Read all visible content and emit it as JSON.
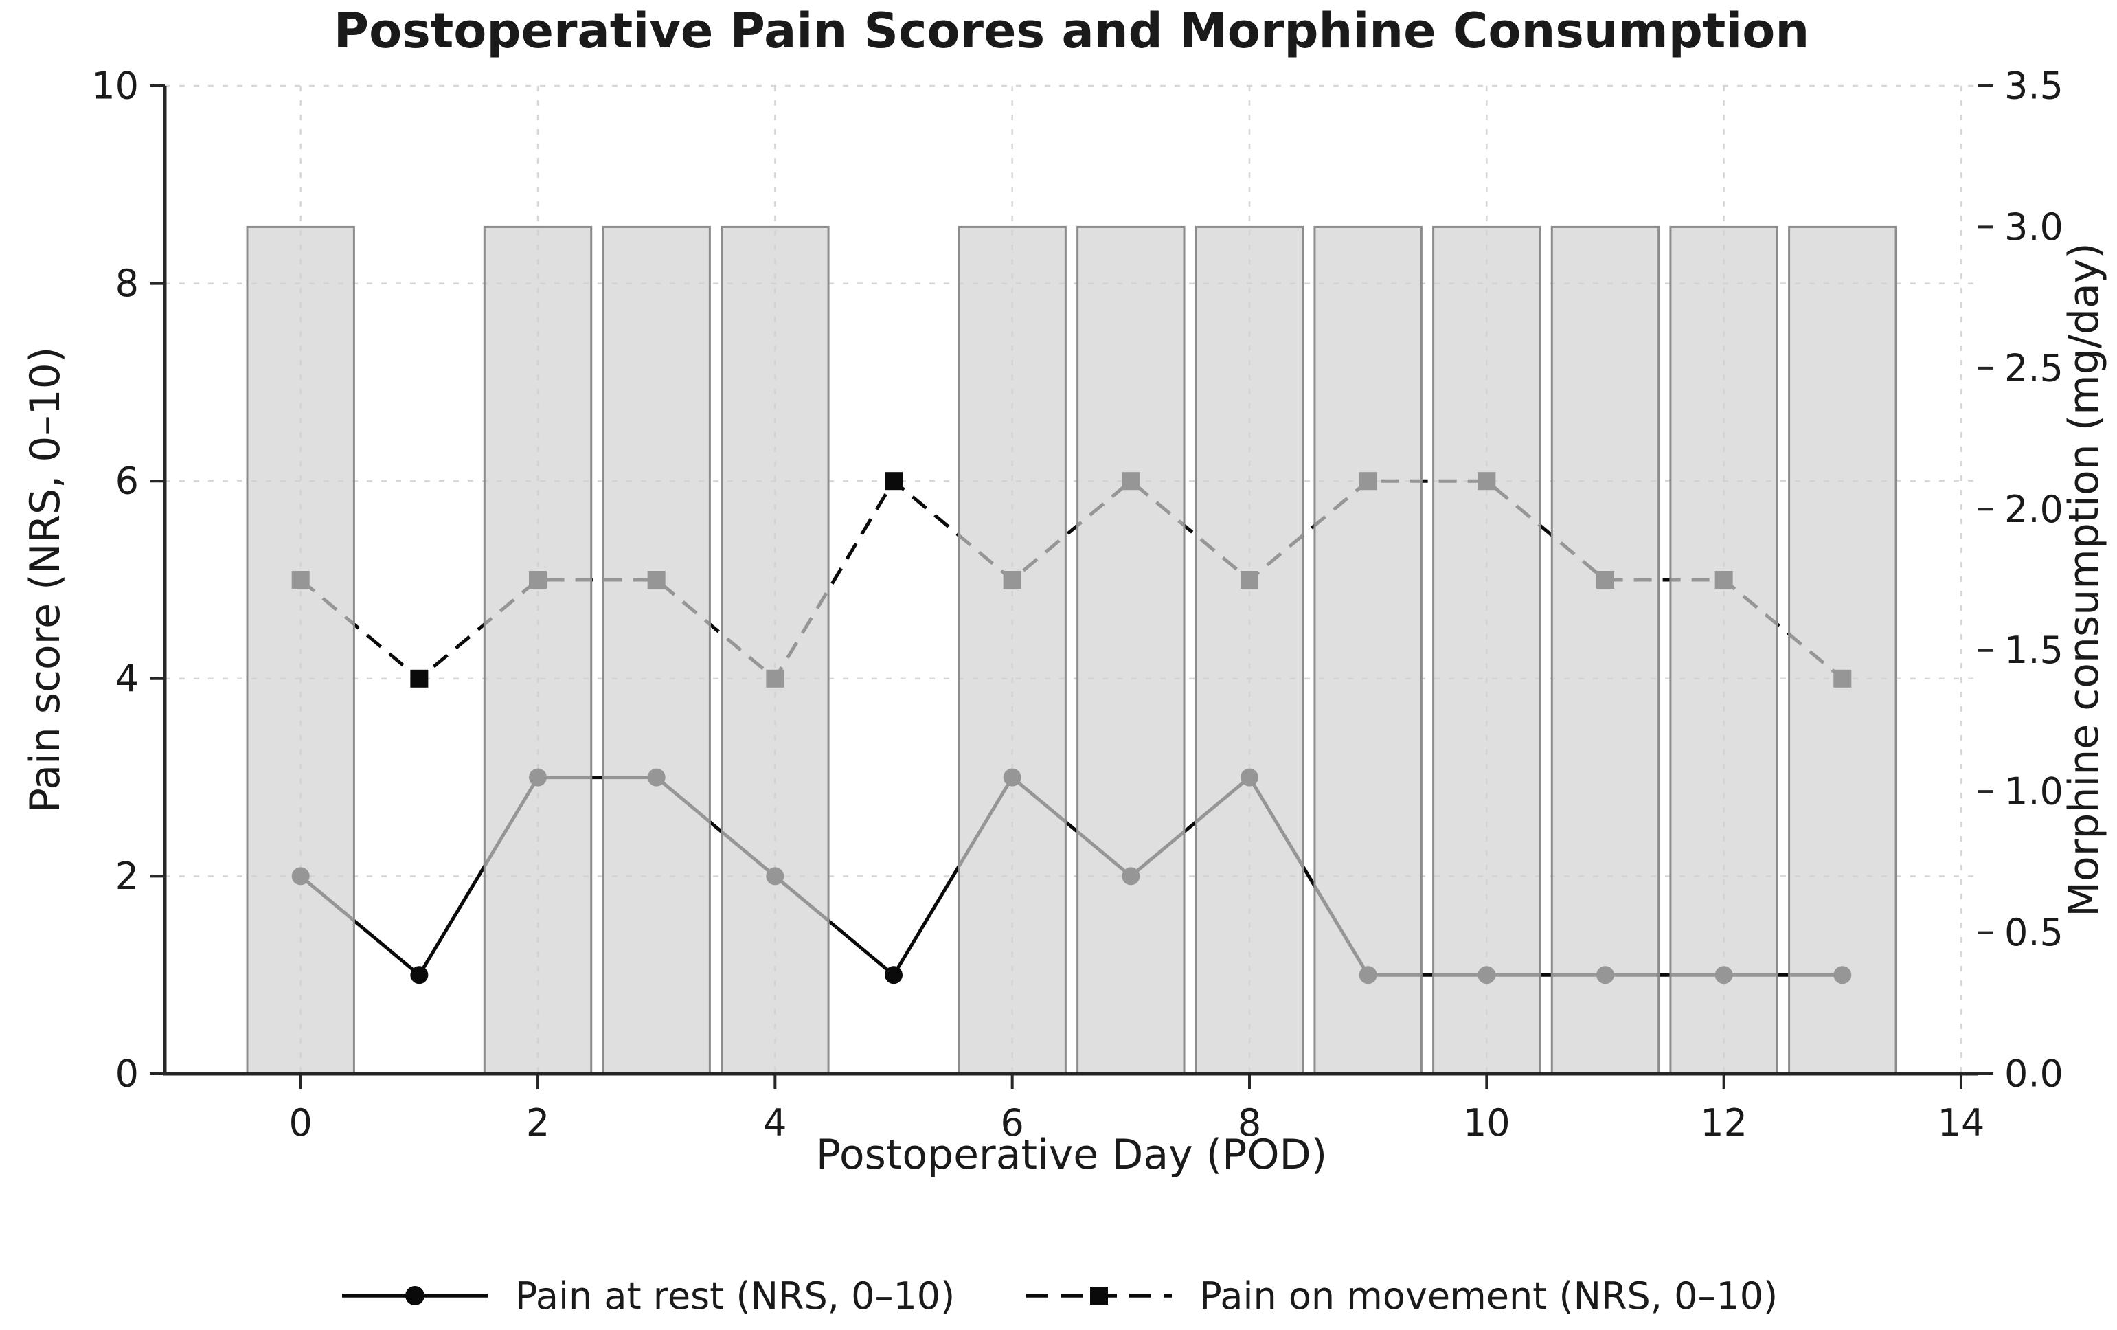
{
  "title": "Postoperative Pain Scores and Morphine Consumption",
  "axes": {
    "x": {
      "label": "Postoperative Day (POD)",
      "ticks": [
        0,
        2,
        4,
        6,
        8,
        10,
        12,
        14
      ]
    },
    "y_left": {
      "label": "Pain score (NRS, 0–10)",
      "ticks": [
        0,
        2,
        4,
        6,
        8,
        10
      ]
    },
    "y_right": {
      "label": "Morphine consumption (mg/day)",
      "tick_labels": [
        "0.0",
        "0.5",
        "1.0",
        "1.5",
        "2.0",
        "2.5",
        "3.0",
        "3.5"
      ]
    }
  },
  "legend": [
    {
      "label": "Pain at rest (NRS, 0–10)",
      "marker": "circle",
      "line": "solid"
    },
    {
      "label": "Pain on movement (NRS, 0–10)",
      "marker": "square",
      "line": "dashed"
    }
  ],
  "colors": {
    "line": "#0a0a0a",
    "bar_fill": "#d2d2d2",
    "bar_fill_opacity": 0.7,
    "bar_edge": "#8c8c8c",
    "grid": "#d7d7d7",
    "axis": "#262626",
    "text": "#1a1a1a",
    "background": "#ffffff",
    "line_appearance_inside_bars": "#949494"
  },
  "chart_data": {
    "type": "combo",
    "title": "Postoperative Pain Scores and Morphine Consumption",
    "xlabel": "Postoperative Day (POD)",
    "ylabel": "Pain score (NRS, 0–10)",
    "y2label": "Morphine consumption (mg/day)",
    "x": [
      0,
      1,
      2,
      3,
      4,
      5,
      6,
      7,
      8,
      9,
      10,
      11,
      12,
      13
    ],
    "xlim": [
      -1.145,
      14.145
    ],
    "ylim": [
      0,
      10
    ],
    "y2lim": [
      0,
      3.5
    ],
    "grid": true,
    "legend_position": "bottom-center",
    "series": [
      {
        "name": "Pain at rest (NRS, 0–10)",
        "type": "line",
        "style": "solid",
        "marker": "circle",
        "axis": "left",
        "values": [
          2,
          1,
          3,
          3,
          2,
          1,
          3,
          2,
          3,
          1,
          1,
          1,
          1,
          1
        ]
      },
      {
        "name": "Pain on movement (NRS, 0–10)",
        "type": "line",
        "style": "dashed",
        "marker": "square",
        "axis": "left",
        "values": [
          5,
          4,
          5,
          5,
          4,
          6,
          5,
          6,
          5,
          6,
          6,
          5,
          5,
          4
        ]
      },
      {
        "name": "Morphine consumption (mg/day)",
        "type": "bar",
        "axis": "right",
        "bar_width_days": 0.9,
        "values": [
          3.0,
          null,
          3.0,
          3.0,
          3.0,
          null,
          3.0,
          3.0,
          3.0,
          3.0,
          3.0,
          3.0,
          3.0,
          3.0
        ]
      }
    ]
  }
}
